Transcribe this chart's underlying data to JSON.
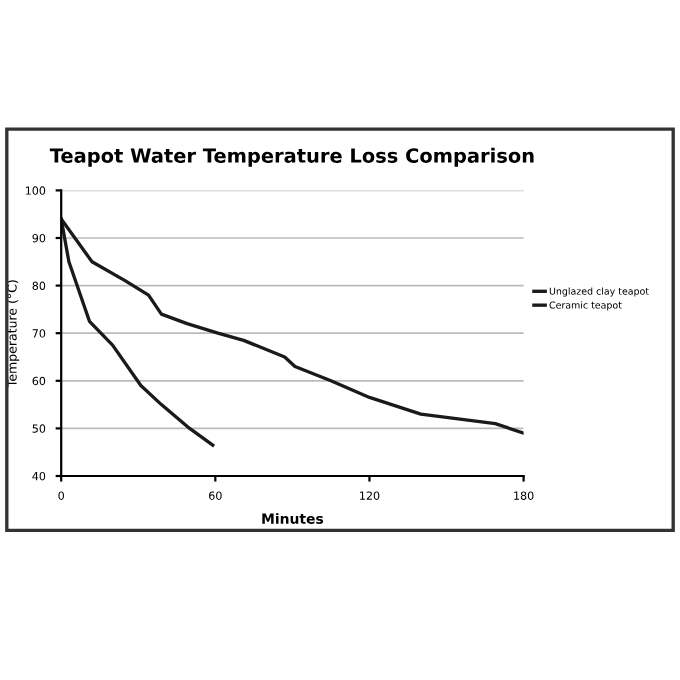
{
  "chart_data": {
    "type": "line",
    "title": "Teapot Water Temperature Loss Comparison",
    "xlabel": "Minutes",
    "ylabel": "Temperature (°C)",
    "xlim": [
      0,
      180
    ],
    "xticks": [
      0,
      60,
      120,
      180
    ],
    "ylim": [
      40,
      100
    ],
    "yticks": [
      40,
      50,
      60,
      70,
      80,
      90,
      100
    ],
    "grid": "y",
    "legend": "right",
    "marker": "none",
    "line_style": "solid",
    "series": [
      {
        "name": "Unglazed clay teapot",
        "color": "#1a1a1a",
        "x": [
          0,
          12,
          25,
          34,
          39,
          49,
          61,
          71,
          87,
          91,
          105,
          120,
          140,
          169,
          180
        ],
        "values": [
          94,
          85,
          81,
          78,
          74,
          72,
          70,
          68.5,
          65,
          63,
          60,
          56.5,
          53,
          51,
          49
        ]
      },
      {
        "name": "Ceramic teapot",
        "color": "#1a1a1a",
        "x": [
          0,
          3,
          11,
          20,
          31,
          39,
          50,
          59
        ],
        "values": [
          94,
          85,
          72.5,
          67.5,
          59,
          55,
          50,
          46.5
        ]
      }
    ]
  }
}
